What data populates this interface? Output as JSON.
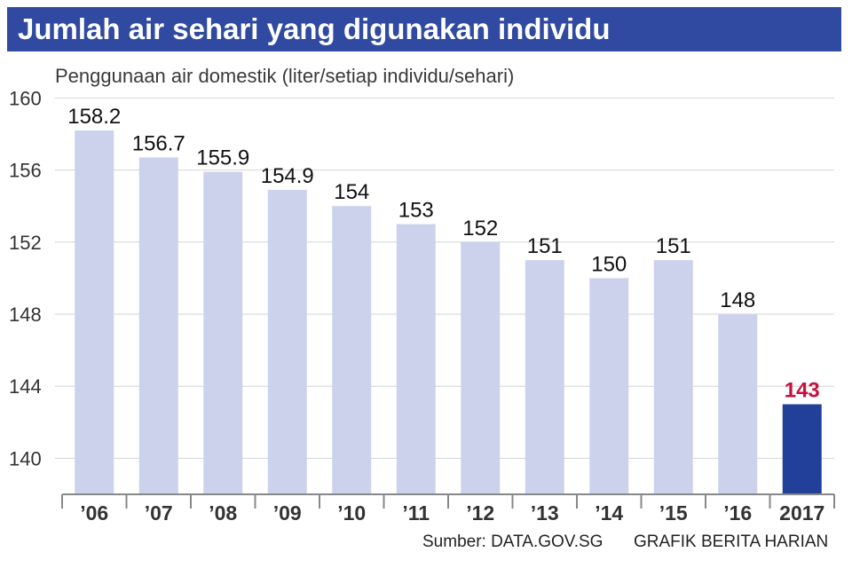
{
  "title": "Jumlah air sehari yang digunakan individu",
  "subtitle": "Penggunaan air domestik (liter/setiap individu/sehari)",
  "source": "Sumber: DATA.GOV.SG",
  "credit": "GRAFIK BERITA HARIAN",
  "colors": {
    "title_bg": "#2f4aa0",
    "bar": "#cdd2ec",
    "highlight_bar": "#22409a",
    "highlight_label": "#c8103e",
    "grid": "#d4d4d4"
  },
  "chart_data": {
    "type": "bar",
    "categories": [
      "’06",
      "’07",
      "’08",
      "’09",
      "’10",
      "’11",
      "’12",
      "’13",
      "’14",
      "’15",
      "’16",
      "2017"
    ],
    "values": [
      158.2,
      156.7,
      155.9,
      154.9,
      154,
      153,
      152,
      151,
      150,
      151,
      148,
      143
    ],
    "value_labels": [
      "158.2",
      "156.7",
      "155.9",
      "154.9",
      "154",
      "153",
      "152",
      "151",
      "150",
      "151",
      "148",
      "143"
    ],
    "highlight_index": 11,
    "yticks": [
      140,
      144,
      148,
      152,
      156,
      160
    ],
    "ylim": [
      138,
      160
    ],
    "grid": true,
    "title": "Jumlah air sehari yang digunakan individu",
    "ylabel": "Penggunaan air domestik (liter/setiap individu/sehari)",
    "xlabel": ""
  }
}
